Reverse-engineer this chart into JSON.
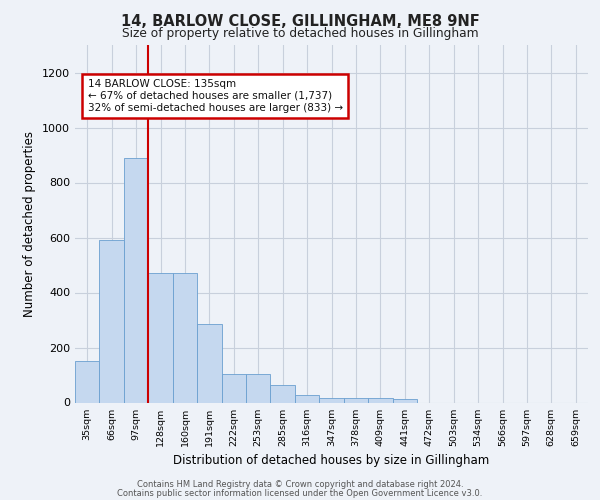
{
  "title1": "14, BARLOW CLOSE, GILLINGHAM, ME8 9NF",
  "title2": "Size of property relative to detached houses in Gillingham",
  "xlabel": "Distribution of detached houses by size in Gillingham",
  "ylabel": "Number of detached properties",
  "categories": [
    "35sqm",
    "66sqm",
    "97sqm",
    "128sqm",
    "160sqm",
    "191sqm",
    "222sqm",
    "253sqm",
    "285sqm",
    "316sqm",
    "347sqm",
    "378sqm",
    "409sqm",
    "441sqm",
    "472sqm",
    "503sqm",
    "534sqm",
    "566sqm",
    "597sqm",
    "628sqm",
    "659sqm"
  ],
  "values": [
    152,
    590,
    890,
    470,
    470,
    285,
    105,
    105,
    63,
    28,
    18,
    15,
    15,
    12,
    0,
    0,
    0,
    0,
    0,
    0,
    0
  ],
  "bar_color": "#c5d8ef",
  "bar_edge_color": "#6a9fd0",
  "vline_x": 2.5,
  "annotation_line1": "14 BARLOW CLOSE: 135sqm",
  "annotation_line2": "← 67% of detached houses are smaller (1,737)",
  "annotation_line3": "32% of semi-detached houses are larger (833) →",
  "annotation_box_color": "#ffffff",
  "annotation_box_edge": "#cc0000",
  "vline_color": "#cc0000",
  "ylim": [
    0,
    1300
  ],
  "yticks": [
    0,
    200,
    400,
    600,
    800,
    1000,
    1200
  ],
  "footer1": "Contains HM Land Registry data © Crown copyright and database right 2024.",
  "footer2": "Contains public sector information licensed under the Open Government Licence v3.0.",
  "bg_color": "#eef2f8",
  "grid_color": "#c8d0dc"
}
